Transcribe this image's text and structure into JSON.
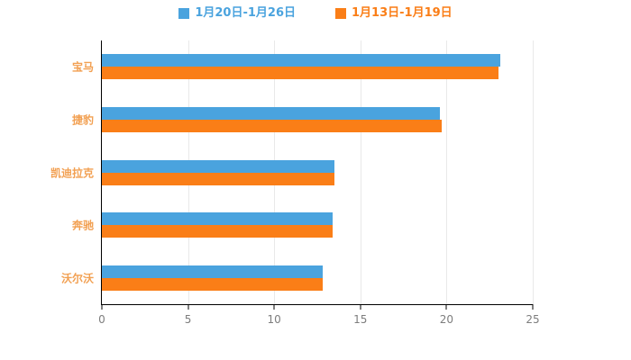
{
  "chart_data": {
    "type": "bar",
    "orientation": "horizontal",
    "title": "",
    "xlabel": "",
    "ylabel": "",
    "categories": [
      "宝马",
      "捷豹",
      "凯迪拉克",
      "奔驰",
      "沃尔沃"
    ],
    "series": [
      {
        "name": "1月20日-1月26日",
        "color": "#4aa3de",
        "values": [
          23.1,
          19.6,
          13.5,
          13.4,
          12.8
        ]
      },
      {
        "name": "1月13日-1月19日",
        "color": "#fa7e17",
        "values": [
          23.0,
          19.7,
          13.5,
          13.4,
          12.8
        ]
      }
    ],
    "xlim": [
      0,
      25
    ],
    "xticks": [
      0,
      5,
      10,
      15,
      20,
      25
    ],
    "grid": true,
    "legend_position": "top",
    "category_label_color": "#f2a052",
    "tick_label_color": "#7d7d7d",
    "axis_color": "#000000",
    "grid_color": "#e9e9e9"
  }
}
